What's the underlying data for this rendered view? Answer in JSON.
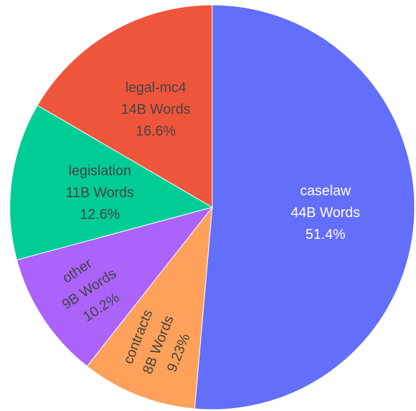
{
  "chart_data": {
    "type": "pie",
    "title": "",
    "slices": [
      {
        "label": "caselaw",
        "words": "44B Words",
        "percent_label": "51.4%",
        "value": 51.4,
        "color": "#636efa",
        "text_color": "#ffffff",
        "label_orientation": "horizontal"
      },
      {
        "label": "contracts",
        "words": "8B Words",
        "percent_label": "9.23%",
        "value": 9.23,
        "color": "#ffa15a",
        "text_color": "#444444",
        "label_orientation": "radial"
      },
      {
        "label": "other",
        "words": "9B Words",
        "percent_label": "10.2%",
        "value": 10.2,
        "color": "#ab63fa",
        "text_color": "#444444",
        "label_orientation": "radial"
      },
      {
        "label": "legislation",
        "words": "11B Words",
        "percent_label": "12.6%",
        "value": 12.6,
        "color": "#00cc96",
        "text_color": "#444444",
        "label_orientation": "horizontal"
      },
      {
        "label": "legal-mc4",
        "words": "14B Words",
        "percent_label": "16.6%",
        "value": 16.6,
        "color": "#ef553b",
        "text_color": "#444444",
        "label_orientation": "horizontal"
      }
    ],
    "start_angle": "12 o'clock",
    "direction": "clockwise",
    "legend": "none"
  }
}
